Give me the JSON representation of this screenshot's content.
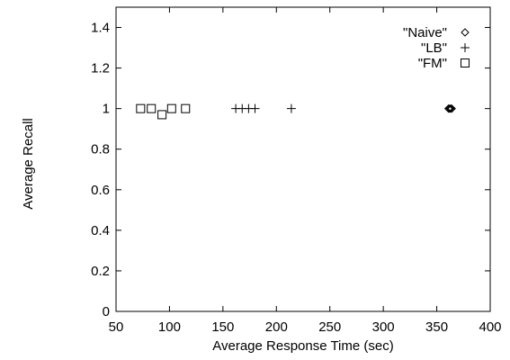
{
  "chart_data": {
    "type": "scatter",
    "xlabel": "Average Response Time (sec)",
    "ylabel": "Average Recall",
    "xlim": [
      50,
      400
    ],
    "ylim": [
      0,
      1.5
    ],
    "xticks": [
      50,
      100,
      150,
      200,
      250,
      300,
      350,
      400
    ],
    "yticks": [
      0,
      0.2,
      0.4,
      0.6,
      0.8,
      1,
      1.2,
      1.4
    ],
    "xtick_labels": [
      "50",
      "100",
      "150",
      "200",
      "250",
      "300",
      "350",
      "400"
    ],
    "ytick_labels": [
      "0",
      "0.2",
      "0.4",
      "0.6",
      "0.8",
      "1",
      "1.2",
      "1.4"
    ],
    "grid": false,
    "legend_position": "top-right",
    "series": [
      {
        "name": "\"Naive\"",
        "marker": "diamond",
        "points": [
          [
            361,
            1
          ],
          [
            362,
            1
          ],
          [
            363,
            1
          ],
          [
            364,
            1
          ]
        ]
      },
      {
        "name": "\"LB\"",
        "marker": "plus",
        "points": [
          [
            162,
            1
          ],
          [
            168,
            1
          ],
          [
            174,
            1
          ],
          [
            180,
            1
          ],
          [
            214,
            1
          ]
        ]
      },
      {
        "name": "\"FM\"",
        "marker": "square",
        "points": [
          [
            73,
            1
          ],
          [
            83,
            1
          ],
          [
            93,
            0.97
          ],
          [
            102,
            1
          ],
          [
            115,
            1
          ]
        ]
      }
    ]
  }
}
